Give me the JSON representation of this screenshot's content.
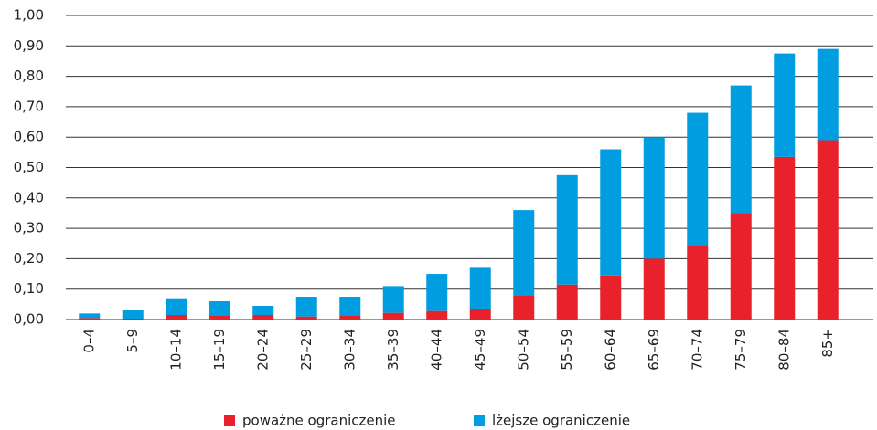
{
  "chart_data": {
    "type": "stacked_bar",
    "categories": [
      "0–4",
      "5–9",
      "10–14",
      "15–19",
      "20–24",
      "25–29",
      "30–34",
      "35–39",
      "40–44",
      "45–49",
      "50–54",
      "55–59",
      "60–64",
      "65–69",
      "70–74",
      "75–79",
      "80–84",
      "85+"
    ],
    "series": [
      {
        "name": "poważne ograniczenie",
        "color": "#e8212a",
        "values": [
          0.005,
          0.003,
          0.015,
          0.012,
          0.015,
          0.01,
          0.012,
          0.022,
          0.028,
          0.035,
          0.08,
          0.115,
          0.145,
          0.2,
          0.245,
          0.35,
          0.535,
          0.59
        ]
      },
      {
        "name": "lżejsze ograniczenie",
        "color": "#009ee0",
        "values": [
          0.015,
          0.027,
          0.055,
          0.048,
          0.03,
          0.065,
          0.063,
          0.088,
          0.122,
          0.135,
          0.28,
          0.36,
          0.415,
          0.4,
          0.435,
          0.42,
          0.34,
          0.3
        ]
      }
    ],
    "ylim": [
      0,
      1
    ],
    "yticks": [
      {
        "value": 0,
        "label": "0,00"
      },
      {
        "value": 0.1,
        "label": "0,10"
      },
      {
        "value": 0.2,
        "label": "0,20"
      },
      {
        "value": 0.3,
        "label": "0,30"
      },
      {
        "value": 0.4,
        "label": "0,40"
      },
      {
        "value": 0.5,
        "label": "0,50"
      },
      {
        "value": 0.6,
        "label": "0,60"
      },
      {
        "value": 0.7,
        "label": "0,70"
      },
      {
        "value": 0.8,
        "label": "0,80"
      },
      {
        "value": 0.9,
        "label": "0,90"
      },
      {
        "value": 1,
        "label": "1,00"
      }
    ],
    "grid": true,
    "legend": "bottom"
  }
}
